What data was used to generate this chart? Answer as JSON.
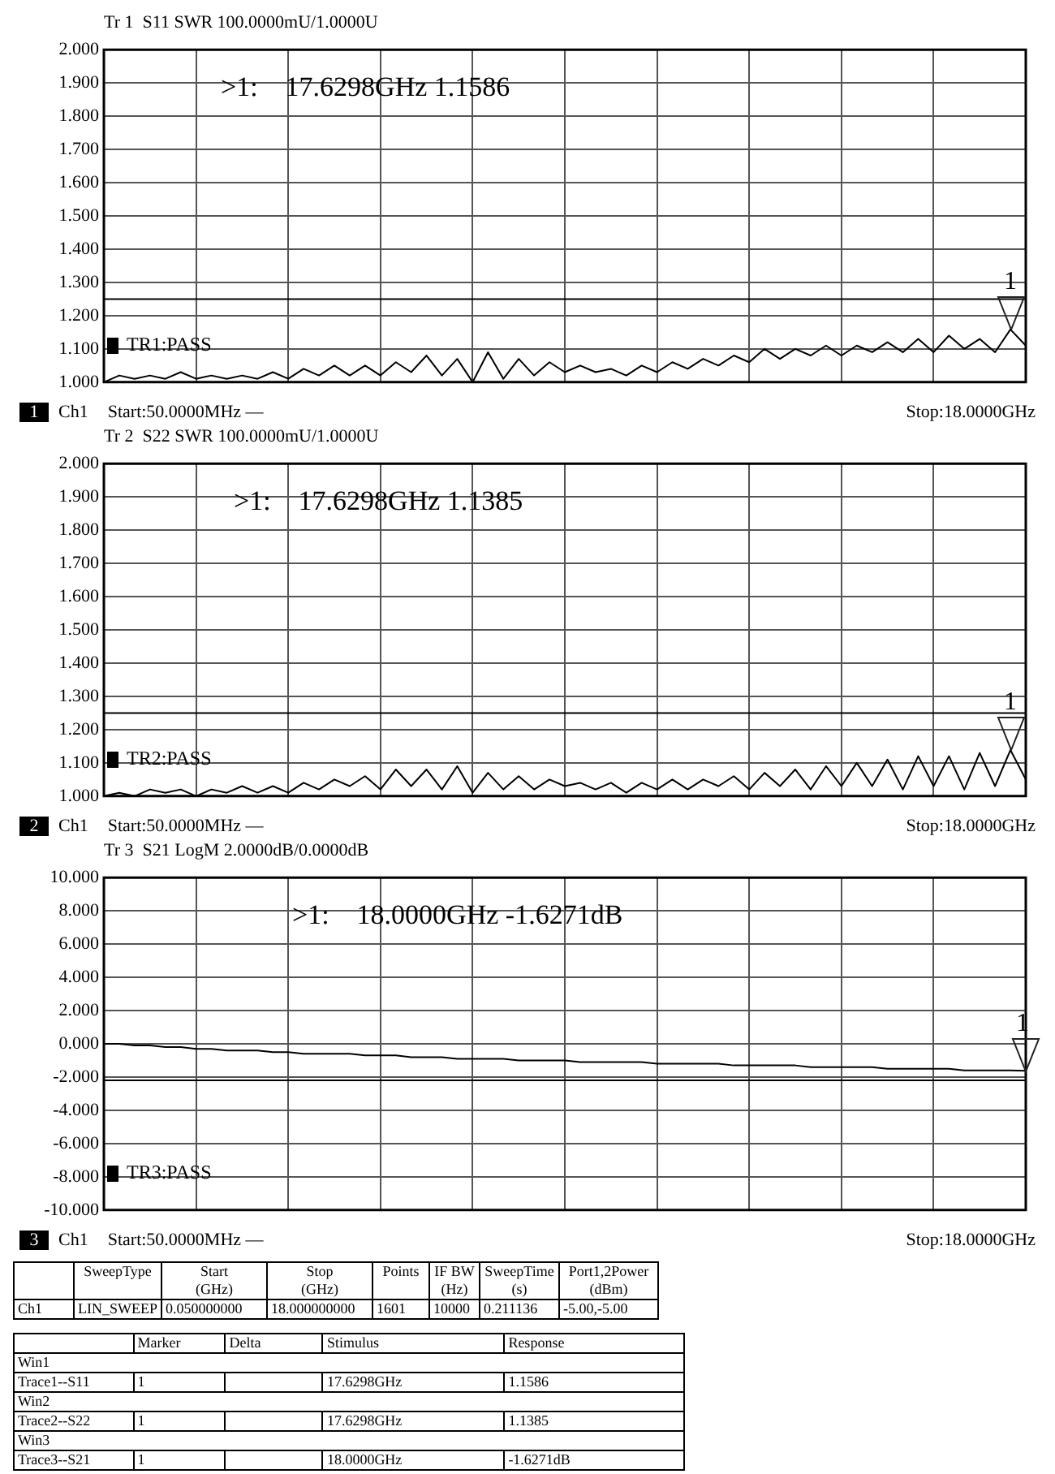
{
  "chart_data": [
    {
      "type": "line",
      "title": "Tr 1  S11 SWR 100.0000mU/1.0000U",
      "categories": [
        null,
        null,
        null,
        null,
        null,
        null,
        null,
        null,
        null,
        null,
        null,
        null,
        null,
        null,
        null,
        null,
        null,
        null,
        null,
        null,
        null,
        null,
        null,
        null,
        null,
        null,
        null,
        null,
        null,
        null,
        null,
        null,
        null,
        null,
        null,
        null,
        null,
        null,
        null,
        null,
        null,
        null,
        null,
        null,
        null,
        null,
        null,
        null,
        null,
        null,
        null,
        null,
        null,
        null,
        null,
        null,
        null,
        null,
        null,
        null,
        null
      ],
      "series": [
        {
          "color": "#000000",
          "values": [
            1.0,
            1.02,
            1.01,
            1.02,
            1.01,
            1.03,
            1.01,
            1.02,
            1.01,
            1.02,
            1.01,
            1.03,
            1.01,
            1.04,
            1.02,
            1.05,
            1.02,
            1.05,
            1.02,
            1.06,
            1.03,
            1.08,
            1.02,
            1.07,
            1.0,
            1.09,
            1.01,
            1.07,
            1.02,
            1.06,
            1.03,
            1.05,
            1.03,
            1.04,
            1.02,
            1.05,
            1.03,
            1.06,
            1.04,
            1.07,
            1.05,
            1.08,
            1.06,
            1.1,
            1.07,
            1.1,
            1.08,
            1.11,
            1.08,
            1.11,
            1.09,
            1.12,
            1.09,
            1.13,
            1.09,
            1.14,
            1.1,
            1.13,
            1.09,
            1.1586,
            1.11
          ]
        }
      ],
      "ylim": [
        1,
        2
      ],
      "yticks": [
        {
          "value": 1,
          "label": "1.000"
        },
        {
          "value": 1.1,
          "label": "1.100"
        },
        {
          "value": 1.2,
          "label": "1.200"
        },
        {
          "value": 1.3,
          "label": "1.300"
        },
        {
          "value": 1.4,
          "label": "1.400"
        },
        {
          "value": 1.5,
          "label": "1.500"
        },
        {
          "value": 1.6,
          "label": "1.600"
        },
        {
          "value": 1.7,
          "label": "1.700"
        },
        {
          "value": 1.8,
          "label": "1.800"
        },
        {
          "value": 1.9,
          "label": "1.900"
        },
        {
          "value": 2,
          "label": "2.000"
        }
      ],
      "grid": true,
      "tick_labels": "y",
      "ref_lines": [
        {
          "axis": "y",
          "value": 1.25,
          "color": "#000000"
        }
      ],
      "annotations": [
        "1",
        "Ch1",
        "Start:50.0000MHz —",
        "Stop:18.0000GHz",
        "TR1:PASS",
        ">1:    17.6298GHz 1.1586",
        {
          "text": "1",
          "y": 1.1586
        }
      ]
    },
    {
      "type": "line",
      "title": "Tr 2  S22 SWR 100.0000mU/1.0000U",
      "categories": [
        null,
        null,
        null,
        null,
        null,
        null,
        null,
        null,
        null,
        null,
        null,
        null,
        null,
        null,
        null,
        null,
        null,
        null,
        null,
        null,
        null,
        null,
        null,
        null,
        null,
        null,
        null,
        null,
        null,
        null,
        null,
        null,
        null,
        null,
        null,
        null,
        null,
        null,
        null,
        null,
        null,
        null,
        null,
        null,
        null,
        null,
        null,
        null,
        null,
        null,
        null,
        null,
        null,
        null,
        null,
        null,
        null,
        null,
        null,
        null,
        null
      ],
      "series": [
        {
          "color": "#000000",
          "values": [
            1.0,
            1.01,
            1.0,
            1.02,
            1.01,
            1.02,
            1.0,
            1.02,
            1.01,
            1.03,
            1.01,
            1.03,
            1.01,
            1.04,
            1.02,
            1.05,
            1.03,
            1.06,
            1.02,
            1.08,
            1.03,
            1.08,
            1.02,
            1.09,
            1.01,
            1.07,
            1.02,
            1.06,
            1.02,
            1.05,
            1.03,
            1.04,
            1.02,
            1.04,
            1.01,
            1.04,
            1.02,
            1.05,
            1.02,
            1.05,
            1.03,
            1.06,
            1.02,
            1.07,
            1.03,
            1.08,
            1.02,
            1.09,
            1.03,
            1.1,
            1.03,
            1.11,
            1.02,
            1.12,
            1.03,
            1.12,
            1.02,
            1.13,
            1.03,
            1.1385,
            1.05
          ]
        }
      ],
      "ylim": [
        1,
        2
      ],
      "yticks": [
        {
          "value": 1,
          "label": "1.000"
        },
        {
          "value": 1.1,
          "label": "1.100"
        },
        {
          "value": 1.2,
          "label": "1.200"
        },
        {
          "value": 1.3,
          "label": "1.300"
        },
        {
          "value": 1.4,
          "label": "1.400"
        },
        {
          "value": 1.5,
          "label": "1.500"
        },
        {
          "value": 1.6,
          "label": "1.600"
        },
        {
          "value": 1.7,
          "label": "1.700"
        },
        {
          "value": 1.8,
          "label": "1.800"
        },
        {
          "value": 1.9,
          "label": "1.900"
        },
        {
          "value": 2,
          "label": "2.000"
        }
      ],
      "grid": true,
      "tick_labels": "y",
      "ref_lines": [
        {
          "axis": "y",
          "value": 1.25,
          "color": "#000000"
        }
      ],
      "annotations": [
        "2",
        "Ch1",
        "Start:50.0000MHz —",
        "Stop:18.0000GHz",
        "TR2:PASS",
        ">1:    17.6298GHz 1.1385",
        {
          "text": "1",
          "y": 1.1385
        }
      ]
    },
    {
      "type": "line",
      "title": "Tr 3  S21 LogM 2.0000dB/0.0000dB",
      "categories": [
        null,
        null,
        null,
        null,
        null,
        null,
        null,
        null,
        null,
        null,
        null,
        null,
        null,
        null,
        null,
        null,
        null,
        null,
        null,
        null,
        null,
        null,
        null,
        null,
        null,
        null,
        null,
        null,
        null,
        null,
        null,
        null,
        null,
        null,
        null,
        null,
        null,
        null,
        null,
        null,
        null,
        null,
        null,
        null,
        null,
        null,
        null,
        null,
        null,
        null,
        null,
        null,
        null,
        null,
        null,
        null,
        null,
        null,
        null,
        null,
        null
      ],
      "series": [
        {
          "color": "#000000",
          "values": [
            0,
            0,
            -0.1,
            -0.1,
            -0.2,
            -0.2,
            -0.3,
            -0.3,
            -0.4,
            -0.4,
            -0.4,
            -0.5,
            -0.5,
            -0.6,
            -0.6,
            -0.6,
            -0.6,
            -0.7,
            -0.7,
            -0.7,
            -0.8,
            -0.8,
            -0.8,
            -0.9,
            -0.9,
            -0.9,
            -0.9,
            -1.0,
            -1.0,
            -1.0,
            -1.0,
            -1.1,
            -1.1,
            -1.1,
            -1.1,
            -1.1,
            -1.2,
            -1.2,
            -1.2,
            -1.2,
            -1.2,
            -1.3,
            -1.3,
            -1.3,
            -1.3,
            -1.3,
            -1.4,
            -1.4,
            -1.4,
            -1.4,
            -1.4,
            -1.5,
            -1.5,
            -1.5,
            -1.5,
            -1.5,
            -1.6,
            -1.6,
            -1.6,
            -1.6,
            -1.6271
          ]
        }
      ],
      "ylim": [
        -10,
        10
      ],
      "yticks": [
        {
          "value": -10,
          "label": "-10.000"
        },
        {
          "value": -8,
          "label": "-8.000"
        },
        {
          "value": -6,
          "label": "-6.000"
        },
        {
          "value": -4,
          "label": "-4.000"
        },
        {
          "value": -2,
          "label": "-2.000"
        },
        {
          "value": 0,
          "label": "0.000"
        },
        {
          "value": 2,
          "label": "2.000"
        },
        {
          "value": 4,
          "label": "4.000"
        },
        {
          "value": 6,
          "label": "6.000"
        },
        {
          "value": 8,
          "label": "8.000"
        },
        {
          "value": 10,
          "label": "10.000"
        }
      ],
      "grid": true,
      "tick_labels": "y",
      "ref_lines": [
        {
          "axis": "y",
          "value": -2.2,
          "color": "#000000"
        }
      ],
      "annotations": [
        "3",
        "Ch1",
        "Start:50.0000MHz —",
        "Stop:18.0000GHz",
        "TR3:PASS",
        ">1:    18.0000GHz -1.6271dB",
        {
          "text": "1",
          "y": -1.6271
        }
      ]
    },
    {
      "type": "other",
      "annotations": [
        "SweepType",
        "Start\n(GHz)",
        "Stop\n(GHz)",
        "Points",
        "IF BW\n(Hz)",
        "SweepTime\n(s)",
        "Port1,2Power\n(dBm)",
        "Ch1",
        "LIN_SWEEP",
        "0.050000000",
        "18.000000000",
        "1601",
        "10000",
        "0.211136",
        "-5.00,-5.00",
        "Marker",
        "Delta",
        "Stimulus",
        "Response",
        "Win1",
        "Trace1--S11",
        "1",
        "17.6298GHz",
        "1.1586",
        "Win2",
        "Trace2--S22",
        "1",
        "17.6298GHz",
        "1.1385",
        "Win3",
        "Trace3--S21",
        "1",
        "18.0000GHz",
        "-1.6271dB"
      ]
    }
  ]
}
